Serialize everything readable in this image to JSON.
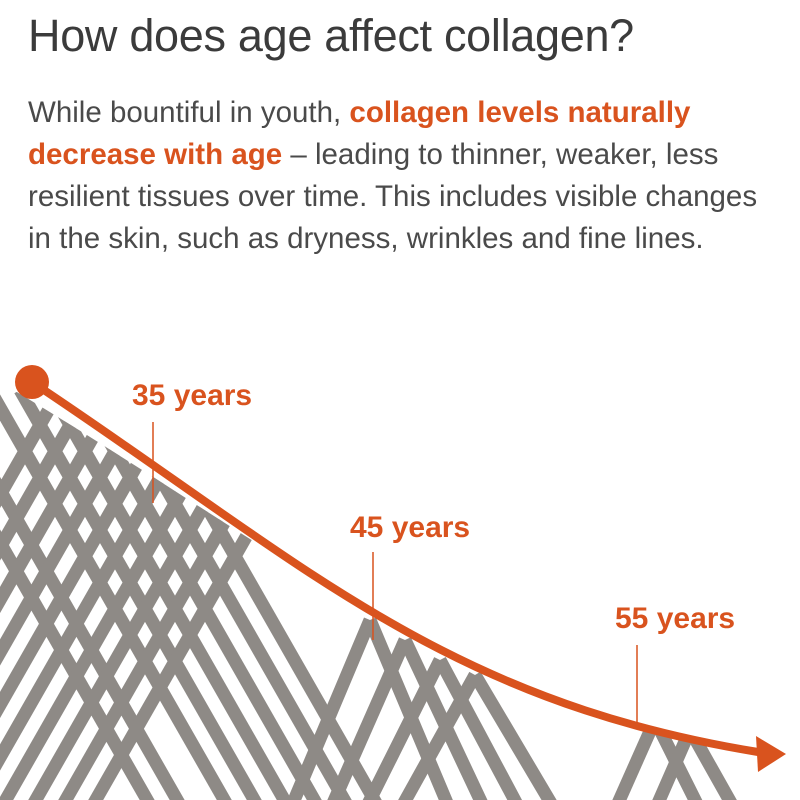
{
  "title": "How does age affect collagen?",
  "paragraph": {
    "lead": "While bountiful in youth, ",
    "highlight": "collagen levels naturally decrease with age",
    "rest": " – leading to thinner, weaker, less resilient tissues over time. This includes visible changes in the skin, such as dryness, wrinkles and fine lines."
  },
  "age_markers": [
    {
      "label": "35 years"
    },
    {
      "label": "45 years"
    },
    {
      "label": "55 years"
    }
  ],
  "colors": {
    "accent": "#d9531e",
    "fiber": "#8e8a86",
    "text": "#4a4a4a",
    "title": "#3b3b3b"
  }
}
